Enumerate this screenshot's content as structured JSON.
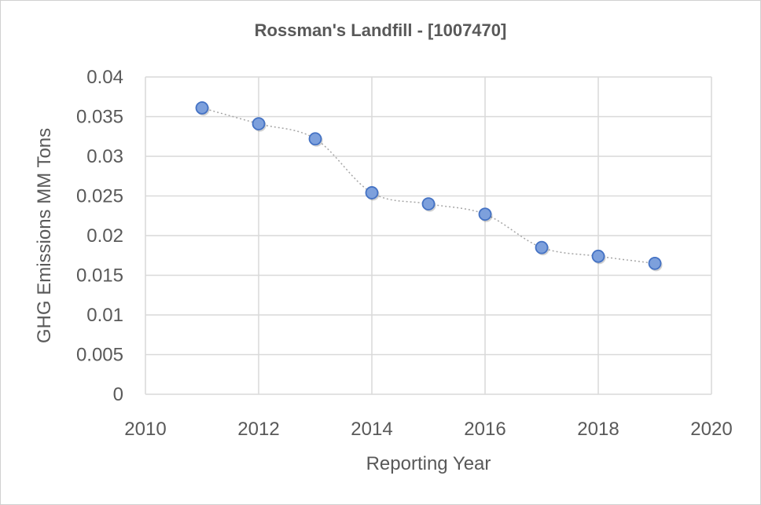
{
  "chart_data": {
    "type": "scatter",
    "title": "Rossman's Landfill - [1007470]",
    "xlabel": "Reporting Year",
    "ylabel": "GHG Emissions MM Tons",
    "xlim": [
      2010,
      2020
    ],
    "ylim": [
      0,
      0.04
    ],
    "x_ticks": [
      "2010",
      "2012",
      "2014",
      "2016",
      "2018",
      "2020"
    ],
    "y_ticks": [
      "0",
      "0.005",
      "0.01",
      "0.015",
      "0.02",
      "0.025",
      "0.03",
      "0.035",
      "0.04"
    ],
    "grid": true,
    "legend": "none",
    "line_style": "dotted smoothed connector",
    "series": [
      {
        "x": [
          2011,
          2012,
          2013,
          2014,
          2015,
          2016,
          2017,
          2018,
          2019
        ],
        "values": [
          0.0361,
          0.0341,
          0.0322,
          0.0254,
          0.024,
          0.0227,
          0.0185,
          0.0174,
          0.0165
        ]
      }
    ],
    "colors": {
      "marker_fill": "#7da0dc",
      "marker_stroke": "#4472c4",
      "gridline": "#d9d9d9",
      "connector": "#a6a6a6",
      "text": "#595959"
    }
  }
}
